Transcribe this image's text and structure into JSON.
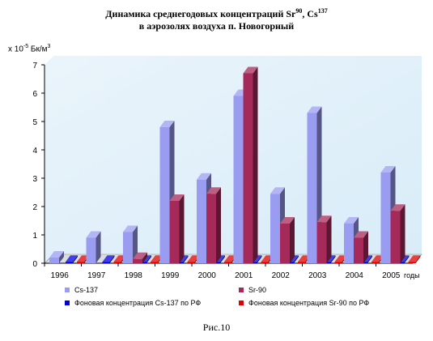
{
  "title": {
    "line1_prefix": "Динамика среднегодовых концентраций Sr",
    "line1_sup1": "90",
    "line1_mid": ", Cs",
    "line1_sup2": "137",
    "line2": "в аэрозолях воздуха п. Новогорный"
  },
  "ylabel": {
    "prefix": "x 10",
    "exp": "-5",
    "unit": " Бк/м",
    "unit_exp": "3"
  },
  "caption": "Рис.10",
  "colors": {
    "cs137": "#9a9cf2",
    "sr90": "#a52a5a",
    "bg_cs137": "#0000dd",
    "bg_sr90": "#e00000",
    "wall": "#d8ecf8"
  },
  "chart_data": {
    "type": "bar",
    "categories": [
      "1996",
      "1997",
      "1998",
      "1999",
      "2000",
      "2001",
      "2002",
      "2003",
      "2004",
      "2005"
    ],
    "xunit": "годы",
    "yticks": [
      "0",
      "1",
      "2",
      "3",
      "4",
      "5",
      "6",
      "7"
    ],
    "ylim": [
      0,
      7
    ],
    "series": [
      {
        "name": "Cs-137",
        "values": [
          0.2,
          0.9,
          1.1,
          4.8,
          2.95,
          5.9,
          2.45,
          5.3,
          1.4,
          3.2
        ]
      },
      {
        "name": "Sr-90",
        "values": [
          0.0,
          0.0,
          0.15,
          2.2,
          2.45,
          6.7,
          1.4,
          1.45,
          0.9,
          1.85
        ]
      },
      {
        "name": "Фоновая концентрация Cs-137 по РФ",
        "values": [
          0.05,
          0.05,
          0.05,
          0.05,
          0.05,
          0.05,
          0.05,
          0.05,
          0.05,
          0.05
        ]
      },
      {
        "name": "Фоновая концентрация Sr-90 по РФ",
        "values": [
          0.05,
          0.05,
          0.05,
          0.05,
          0.05,
          0.05,
          0.05,
          0.05,
          0.05,
          0.05
        ]
      }
    ],
    "grid": false,
    "legend": "bottom"
  }
}
